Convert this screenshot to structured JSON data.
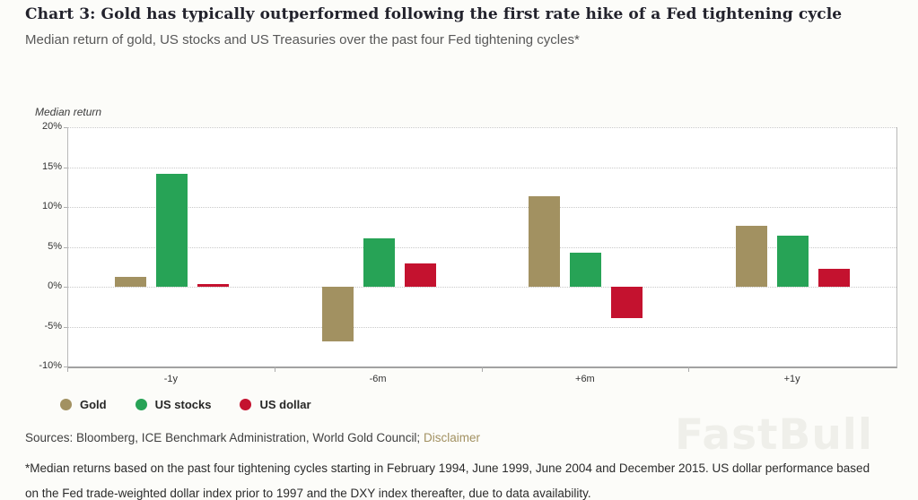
{
  "header": {
    "title": "Chart 3: Gold has typically outperformed following the first rate hike of a Fed tightening cycle",
    "subtitle": "Median return of gold, US stocks and US Treasuries over the past four Fed tightening cycles*"
  },
  "chart_data": {
    "type": "bar",
    "title": "Median return of gold, US stocks and US Treasuries over the past four Fed tightening cycles",
    "y_axis_title": "Median return",
    "categories": [
      "-1y",
      "-6m",
      "+6m",
      "+1y"
    ],
    "series": [
      {
        "name": "Gold",
        "color": "#a29161",
        "values": [
          1.2,
          -6.9,
          11.4,
          7.6
        ]
      },
      {
        "name": "US stocks",
        "color": "#27a356",
        "values": [
          14.2,
          6.1,
          4.3,
          6.4
        ]
      },
      {
        "name": "US dollar",
        "color": "#c4122f",
        "values": [
          0.3,
          2.9,
          -3.9,
          2.2
        ]
      }
    ],
    "ylim": [
      -10,
      20
    ],
    "y_ticks": [
      20,
      15,
      10,
      5,
      0,
      -5,
      -10
    ],
    "y_tick_suffix": "%",
    "grid": "dotted-horizontal",
    "legend_position": "bottom-left"
  },
  "footer": {
    "sources_prefix": "Sources: Bloomberg, ICE Benchmark Administration, World Gold Council;",
    "disclaimer_label": "Disclaimer",
    "footnote": "*Median returns based on the past four tightening cycles starting in February 1994, June 1999, June 2004 and December 2015. US dollar performance based on the Fed trade-weighted dollar index prior to 1997 and the DXY index thereafter, due to data availability."
  },
  "watermark": {
    "text": "FastBull"
  },
  "colors": {
    "gold": "#a29161",
    "green": "#27a356",
    "red": "#c4122f",
    "link": "#a29161"
  }
}
